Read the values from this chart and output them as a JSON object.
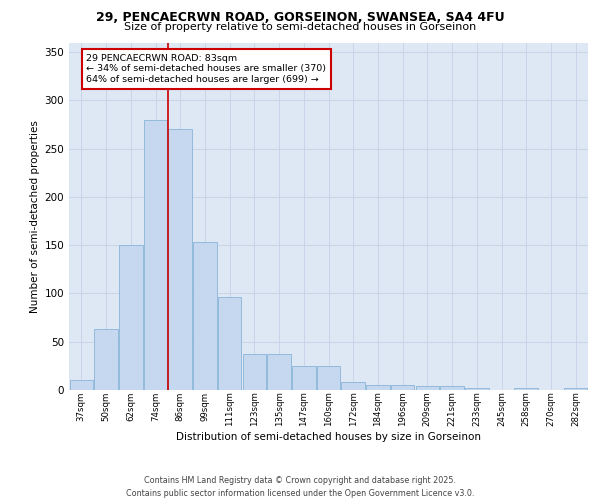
{
  "title1": "29, PENCAECRWN ROAD, GORSEINON, SWANSEA, SA4 4FU",
  "title2": "Size of property relative to semi-detached houses in Gorseinon",
  "xlabel": "Distribution of semi-detached houses by size in Gorseinon",
  "ylabel": "Number of semi-detached properties",
  "categories": [
    "37sqm",
    "50sqm",
    "62sqm",
    "74sqm",
    "86sqm",
    "99sqm",
    "111sqm",
    "123sqm",
    "135sqm",
    "147sqm",
    "160sqm",
    "172sqm",
    "184sqm",
    "196sqm",
    "209sqm",
    "221sqm",
    "233sqm",
    "245sqm",
    "258sqm",
    "270sqm",
    "282sqm"
  ],
  "values": [
    10,
    63,
    150,
    280,
    270,
    153,
    96,
    37,
    37,
    25,
    25,
    8,
    5,
    5,
    4,
    4,
    2,
    0,
    2,
    0,
    2
  ],
  "bar_color": "#c5d8f0",
  "bar_edge_color": "#8ab4d8",
  "red_line_color": "#cc0000",
  "annotation_box_color": "#ffffff",
  "annotation_box_edge": "#cc0000",
  "grid_color": "#c8d4e8",
  "background_color": "#dde8f4",
  "footer1": "Contains HM Land Registry data © Crown copyright and database right 2025.",
  "footer2": "Contains public sector information licensed under the Open Government Licence v3.0.",
  "ylim": [
    0,
    360
  ],
  "yticks": [
    0,
    50,
    100,
    150,
    200,
    250,
    300,
    350
  ],
  "smaller_pct": 34,
  "smaller_count": 370,
  "larger_pct": 64,
  "larger_count": 699,
  "red_line_x": 3.5
}
